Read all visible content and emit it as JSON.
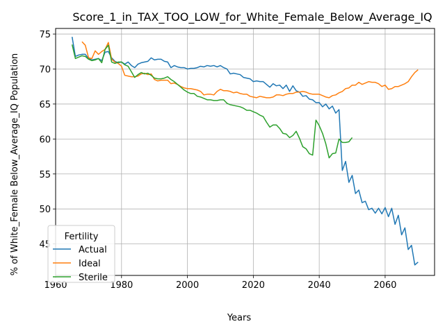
{
  "chart_data": {
    "type": "line",
    "title": "Score_1_in_TAX_TOO_LOW_for_White_Female_Below_Average_IQ",
    "xlabel": "Years",
    "ylabel": "% of White_Female Below_Average_IQ Population",
    "xlim": [
      1960,
      2075
    ],
    "ylim": [
      40.5,
      75.8
    ],
    "xticks": [
      1960,
      1980,
      2000,
      2020,
      2040,
      2060
    ],
    "yticks": [
      45,
      50,
      55,
      60,
      65,
      70,
      75
    ],
    "grid": true,
    "legend": {
      "title": "Fertility",
      "placement": "lower-left"
    },
    "series": [
      {
        "name": "Actual",
        "color": "#1f77b4",
        "points": [
          [
            1965,
            74.6
          ],
          [
            1966,
            71.8
          ],
          [
            1967,
            72.0
          ],
          [
            1968,
            72.1
          ],
          [
            1969,
            72.1
          ],
          [
            1970,
            71.5
          ],
          [
            1971,
            71.3
          ],
          [
            1972,
            71.4
          ],
          [
            1973,
            71.5
          ],
          [
            1974,
            71.2
          ],
          [
            1975,
            72.4
          ],
          [
            1976,
            72.5
          ],
          [
            1977,
            71.6
          ],
          [
            1978,
            71.1
          ],
          [
            1979,
            70.9
          ],
          [
            1980,
            71.0
          ],
          [
            1981,
            70.7
          ],
          [
            1982,
            71.0
          ],
          [
            1983,
            70.5
          ],
          [
            1984,
            70.2
          ],
          [
            1985,
            70.7
          ],
          [
            1986,
            70.9
          ],
          [
            1987,
            71.0
          ],
          [
            1988,
            71.1
          ],
          [
            1989,
            71.6
          ],
          [
            1990,
            71.3
          ],
          [
            1991,
            71.4
          ],
          [
            1992,
            71.4
          ],
          [
            1993,
            71.1
          ],
          [
            1994,
            71.0
          ],
          [
            1995,
            70.2
          ],
          [
            1996,
            70.5
          ],
          [
            1997,
            70.3
          ],
          [
            1998,
            70.2
          ],
          [
            1999,
            70.2
          ],
          [
            2000,
            70.0
          ],
          [
            2001,
            70.1
          ],
          [
            2002,
            70.1
          ],
          [
            2003,
            70.2
          ],
          [
            2004,
            70.4
          ],
          [
            2005,
            70.3
          ],
          [
            2006,
            70.5
          ],
          [
            2007,
            70.4
          ],
          [
            2008,
            70.5
          ],
          [
            2009,
            70.3
          ],
          [
            2010,
            70.5
          ],
          [
            2011,
            70.2
          ],
          [
            2012,
            70.0
          ],
          [
            2013,
            69.3
          ],
          [
            2014,
            69.4
          ],
          [
            2015,
            69.3
          ],
          [
            2016,
            69.2
          ],
          [
            2017,
            68.8
          ],
          [
            2018,
            68.7
          ],
          [
            2019,
            68.6
          ],
          [
            2020,
            68.2
          ],
          [
            2021,
            68.3
          ],
          [
            2022,
            68.2
          ],
          [
            2023,
            68.2
          ],
          [
            2024,
            67.8
          ],
          [
            2025,
            67.4
          ],
          [
            2026,
            67.9
          ],
          [
            2027,
            67.6
          ],
          [
            2028,
            67.7
          ],
          [
            2029,
            67.2
          ],
          [
            2030,
            67.7
          ],
          [
            2031,
            66.8
          ],
          [
            2032,
            67.6
          ],
          [
            2033,
            66.9
          ],
          [
            2034,
            66.7
          ],
          [
            2035,
            66.1
          ],
          [
            2036,
            66.2
          ],
          [
            2037,
            65.7
          ],
          [
            2038,
            65.6
          ],
          [
            2039,
            65.2
          ],
          [
            2040,
            65.2
          ],
          [
            2041,
            64.6
          ],
          [
            2042,
            65.0
          ],
          [
            2043,
            64.3
          ],
          [
            2044,
            64.7
          ],
          [
            2045,
            63.7
          ],
          [
            2046,
            64.2
          ],
          [
            2047,
            55.5
          ],
          [
            2048,
            56.8
          ],
          [
            2049,
            53.8
          ],
          [
            2050,
            54.8
          ],
          [
            2051,
            52.2
          ],
          [
            2052,
            52.7
          ],
          [
            2053,
            50.9
          ],
          [
            2054,
            51.1
          ],
          [
            2055,
            49.9
          ],
          [
            2056,
            50.1
          ],
          [
            2057,
            49.4
          ],
          [
            2058,
            50.1
          ],
          [
            2059,
            49.3
          ],
          [
            2060,
            50.2
          ],
          [
            2061,
            48.9
          ],
          [
            2062,
            50.1
          ],
          [
            2063,
            47.8
          ],
          [
            2064,
            49.1
          ],
          [
            2065,
            46.3
          ],
          [
            2066,
            47.3
          ],
          [
            2067,
            44.2
          ],
          [
            2068,
            44.8
          ],
          [
            2069,
            42.0
          ],
          [
            2070,
            42.4
          ]
        ]
      },
      {
        "name": "Ideal",
        "color": "#ff7f0e",
        "points": [
          [
            1968,
            73.9
          ],
          [
            1969,
            73.4
          ],
          [
            1970,
            71.6
          ],
          [
            1971,
            71.5
          ],
          [
            1972,
            72.6
          ],
          [
            1973,
            72.1
          ],
          [
            1974,
            72.5
          ],
          [
            1975,
            72.8
          ],
          [
            1976,
            73.8
          ],
          [
            1977,
            71.4
          ],
          [
            1978,
            71.0
          ],
          [
            1979,
            70.8
          ],
          [
            1980,
            70.4
          ],
          [
            1981,
            69.1
          ],
          [
            1982,
            69.0
          ],
          [
            1983,
            68.9
          ],
          [
            1984,
            68.9
          ],
          [
            1985,
            69.0
          ],
          [
            1986,
            69.3
          ],
          [
            1987,
            69.4
          ],
          [
            1988,
            69.2
          ],
          [
            1989,
            69.3
          ],
          [
            1990,
            68.5
          ],
          [
            1991,
            68.3
          ],
          [
            1992,
            68.4
          ],
          [
            1993,
            68.4
          ],
          [
            1994,
            68.4
          ],
          [
            1995,
            67.9
          ],
          [
            1996,
            68.0
          ],
          [
            1997,
            67.8
          ],
          [
            1998,
            67.5
          ],
          [
            1999,
            67.3
          ],
          [
            2000,
            67.2
          ],
          [
            2001,
            67.2
          ],
          [
            2002,
            67.1
          ],
          [
            2003,
            67.0
          ],
          [
            2004,
            66.8
          ],
          [
            2005,
            66.3
          ],
          [
            2006,
            66.4
          ],
          [
            2007,
            66.4
          ],
          [
            2008,
            66.3
          ],
          [
            2009,
            66.8
          ],
          [
            2010,
            67.1
          ],
          [
            2011,
            66.9
          ],
          [
            2012,
            66.9
          ],
          [
            2013,
            66.8
          ],
          [
            2014,
            66.6
          ],
          [
            2015,
            66.7
          ],
          [
            2016,
            66.5
          ],
          [
            2017,
            66.4
          ],
          [
            2018,
            66.4
          ],
          [
            2019,
            66.1
          ],
          [
            2020,
            66.0
          ],
          [
            2021,
            65.9
          ],
          [
            2022,
            66.1
          ],
          [
            2023,
            66.0
          ],
          [
            2024,
            65.9
          ],
          [
            2025,
            65.9
          ],
          [
            2026,
            66.0
          ],
          [
            2027,
            66.3
          ],
          [
            2028,
            66.3
          ],
          [
            2029,
            66.2
          ],
          [
            2030,
            66.4
          ],
          [
            2031,
            66.5
          ],
          [
            2032,
            66.5
          ],
          [
            2033,
            66.7
          ],
          [
            2034,
            66.7
          ],
          [
            2035,
            66.8
          ],
          [
            2036,
            66.7
          ],
          [
            2037,
            66.5
          ],
          [
            2038,
            66.4
          ],
          [
            2039,
            66.4
          ],
          [
            2040,
            66.4
          ],
          [
            2041,
            66.2
          ],
          [
            2042,
            66.0
          ],
          [
            2043,
            65.9
          ],
          [
            2044,
            66.2
          ],
          [
            2045,
            66.3
          ],
          [
            2046,
            66.6
          ],
          [
            2047,
            66.8
          ],
          [
            2048,
            67.2
          ],
          [
            2049,
            67.3
          ],
          [
            2050,
            67.7
          ],
          [
            2051,
            67.7
          ],
          [
            2052,
            68.1
          ],
          [
            2053,
            67.8
          ],
          [
            2054,
            68.0
          ],
          [
            2055,
            68.2
          ],
          [
            2056,
            68.1
          ],
          [
            2057,
            68.1
          ],
          [
            2058,
            67.9
          ],
          [
            2059,
            67.5
          ],
          [
            2060,
            67.7
          ],
          [
            2061,
            67.1
          ],
          [
            2062,
            67.2
          ],
          [
            2063,
            67.5
          ],
          [
            2064,
            67.5
          ],
          [
            2065,
            67.7
          ],
          [
            2066,
            67.9
          ],
          [
            2067,
            68.2
          ],
          [
            2068,
            68.9
          ],
          [
            2069,
            69.5
          ],
          [
            2070,
            69.9
          ]
        ]
      },
      {
        "name": "Sterile",
        "color": "#2ca02c",
        "points": [
          [
            1965,
            73.5
          ],
          [
            1966,
            71.5
          ],
          [
            1967,
            71.7
          ],
          [
            1968,
            71.9
          ],
          [
            1969,
            71.8
          ],
          [
            1970,
            71.4
          ],
          [
            1971,
            71.2
          ],
          [
            1972,
            71.3
          ],
          [
            1973,
            71.5
          ],
          [
            1974,
            70.9
          ],
          [
            1975,
            72.8
          ],
          [
            1976,
            73.4
          ],
          [
            1977,
            71.0
          ],
          [
            1978,
            70.8
          ],
          [
            1979,
            71.0
          ],
          [
            1980,
            71.0
          ],
          [
            1981,
            70.6
          ],
          [
            1982,
            70.4
          ],
          [
            1983,
            69.6
          ],
          [
            1984,
            68.8
          ],
          [
            1985,
            69.2
          ],
          [
            1986,
            69.5
          ],
          [
            1987,
            69.3
          ],
          [
            1988,
            69.4
          ],
          [
            1989,
            69.1
          ],
          [
            1990,
            68.7
          ],
          [
            1991,
            68.6
          ],
          [
            1992,
            68.6
          ],
          [
            1993,
            68.7
          ],
          [
            1994,
            68.9
          ],
          [
            1995,
            68.5
          ],
          [
            1996,
            68.2
          ],
          [
            1997,
            67.8
          ],
          [
            1998,
            67.4
          ],
          [
            1999,
            67.0
          ],
          [
            2000,
            66.7
          ],
          [
            2001,
            66.5
          ],
          [
            2002,
            66.5
          ],
          [
            2003,
            66.1
          ],
          [
            2004,
            66.0
          ],
          [
            2005,
            65.8
          ],
          [
            2006,
            65.6
          ],
          [
            2007,
            65.6
          ],
          [
            2008,
            65.5
          ],
          [
            2009,
            65.5
          ],
          [
            2010,
            65.6
          ],
          [
            2011,
            65.6
          ],
          [
            2012,
            65.1
          ],
          [
            2013,
            64.9
          ],
          [
            2014,
            64.8
          ],
          [
            2015,
            64.7
          ],
          [
            2016,
            64.6
          ],
          [
            2017,
            64.4
          ],
          [
            2018,
            64.1
          ],
          [
            2019,
            64.1
          ],
          [
            2020,
            63.9
          ],
          [
            2021,
            63.7
          ],
          [
            2022,
            63.4
          ],
          [
            2023,
            63.2
          ],
          [
            2024,
            62.4
          ],
          [
            2025,
            61.7
          ],
          [
            2026,
            62.0
          ],
          [
            2027,
            62.0
          ],
          [
            2028,
            61.5
          ],
          [
            2029,
            60.8
          ],
          [
            2030,
            60.7
          ],
          [
            2031,
            60.2
          ],
          [
            2032,
            60.5
          ],
          [
            2033,
            61.1
          ],
          [
            2034,
            60.1
          ],
          [
            2035,
            58.9
          ],
          [
            2036,
            58.6
          ],
          [
            2037,
            57.9
          ],
          [
            2038,
            57.7
          ],
          [
            2039,
            62.7
          ],
          [
            2040,
            61.9
          ],
          [
            2041,
            60.8
          ],
          [
            2042,
            59.3
          ],
          [
            2043,
            57.3
          ],
          [
            2044,
            57.9
          ],
          [
            2045,
            58.0
          ],
          [
            2046,
            60.0
          ],
          [
            2047,
            59.5
          ],
          [
            2048,
            59.5
          ],
          [
            2049,
            59.6
          ],
          [
            2050,
            60.2
          ]
        ]
      }
    ]
  }
}
